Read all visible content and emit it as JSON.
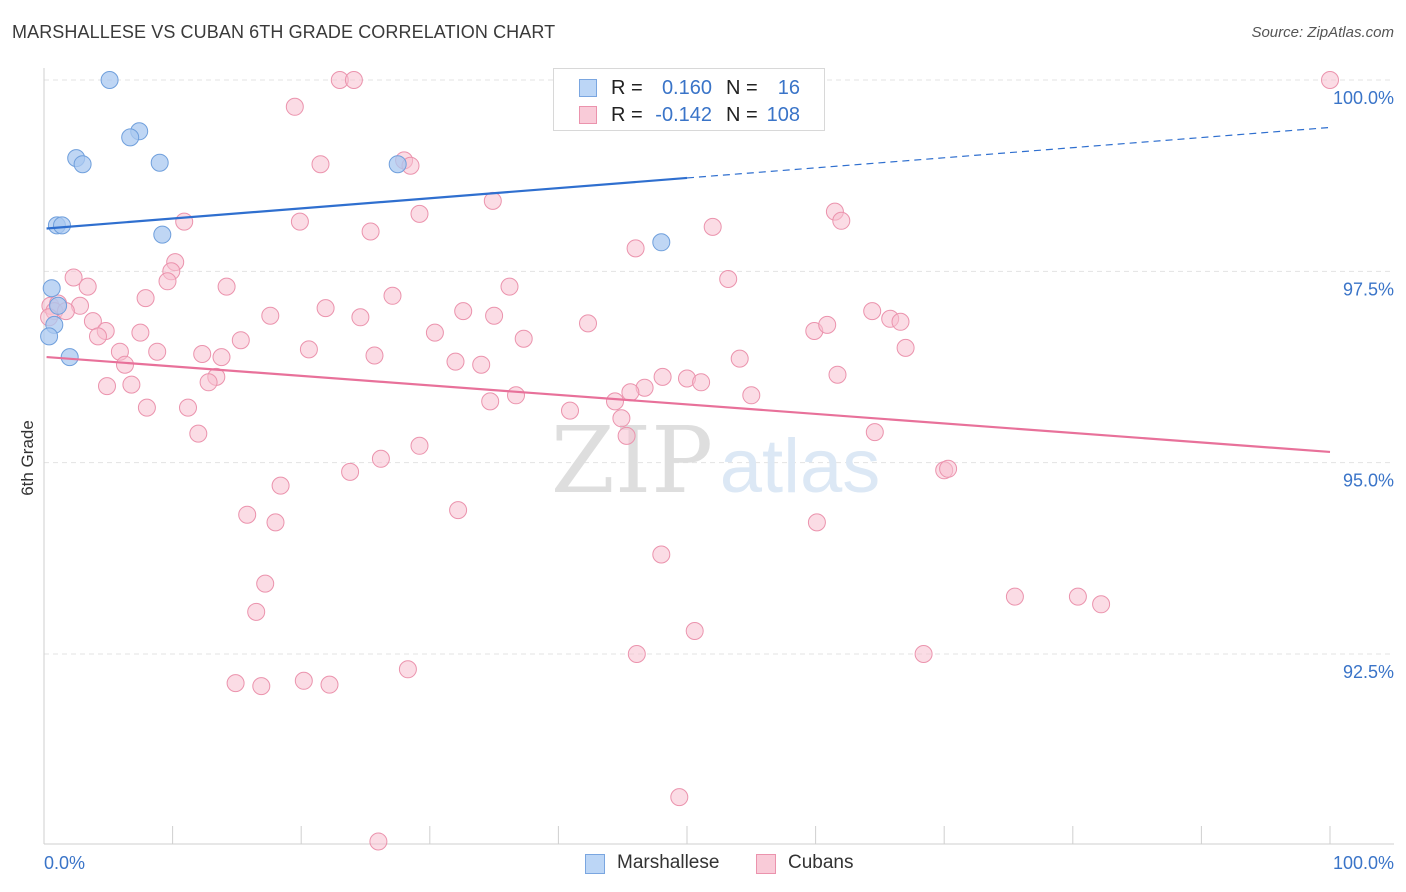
{
  "title": "MARSHALLESE VS CUBAN 6TH GRADE CORRELATION CHART",
  "source": "Source: ZipAtlas.com",
  "watermark": {
    "zip": "ZIP",
    "atlas": "atlas"
  },
  "legend": {
    "rows": [
      {
        "r_label": "R =",
        "r_value": "0.160",
        "n_label": "N =",
        "n_value": "16",
        "color": "#a9c8f0",
        "border": "#7aa6e0"
      },
      {
        "r_label": "R =",
        "r_value": "-0.142",
        "n_label": "N =",
        "n_value": "108",
        "color": "#f7c0d0",
        "border": "#eb93ad"
      }
    ]
  },
  "bottom_legend": [
    {
      "label": "Marshallese",
      "color": "#bcd6f6",
      "border": "#7aa6e0"
    },
    {
      "label": "Cubans",
      "color": "#f9cbd8",
      "border": "#eb93ad"
    }
  ],
  "chart_data": {
    "type": "scatter",
    "title": "MARSHALLESE VS CUBAN 6TH GRADE CORRELATION CHART",
    "xlabel": "",
    "ylabel": "6th Grade",
    "xlim": [
      0,
      100
    ],
    "ylim": [
      89.8,
      100.4
    ],
    "x_tick_labels": {
      "left": "0.0%",
      "right": "100.0%"
    },
    "y_ticks": [
      {
        "value": 100.0,
        "label": "100.0%"
      },
      {
        "value": 97.5,
        "label": "97.5%"
      },
      {
        "value": 95.0,
        "label": "95.0%"
      },
      {
        "value": 92.5,
        "label": "92.5%"
      }
    ],
    "grid": true,
    "series": [
      {
        "name": "Marshallese",
        "color": "#a9c8f0",
        "stroke": "#6f9fdc",
        "line_color": "#2f6fcf",
        "trend": {
          "x_start": 0.2,
          "y_start": 98.06,
          "x_solid_end": 50.0,
          "y_solid_end": 98.72,
          "x_dash_end": 100.0,
          "y_dash_end": 99.38
        },
        "points": [
          {
            "x": 5.1,
            "y": 100.0
          },
          {
            "x": 7.4,
            "y": 99.33
          },
          {
            "x": 6.7,
            "y": 99.25
          },
          {
            "x": 2.5,
            "y": 98.98
          },
          {
            "x": 3.0,
            "y": 98.9
          },
          {
            "x": 9.0,
            "y": 98.92
          },
          {
            "x": 27.5,
            "y": 98.9
          },
          {
            "x": 1.0,
            "y": 98.1
          },
          {
            "x": 1.4,
            "y": 98.1
          },
          {
            "x": 9.2,
            "y": 97.98
          },
          {
            "x": 48.0,
            "y": 97.88
          },
          {
            "x": 0.6,
            "y": 97.28
          },
          {
            "x": 1.1,
            "y": 97.05
          },
          {
            "x": 0.8,
            "y": 96.8
          },
          {
            "x": 0.4,
            "y": 96.65
          },
          {
            "x": 2.0,
            "y": 96.38
          }
        ]
      },
      {
        "name": "Cubans",
        "color": "#f7c0d0",
        "stroke": "#eb93ad",
        "line_color": "#e8719a",
        "trend": {
          "x_start": 0.2,
          "y_start": 96.38,
          "x_end": 100.0,
          "y_end": 95.14
        },
        "points": [
          {
            "x": 23.0,
            "y": 100.0
          },
          {
            "x": 24.1,
            "y": 100.0
          },
          {
            "x": 100.0,
            "y": 100.0
          },
          {
            "x": 19.5,
            "y": 99.65
          },
          {
            "x": 21.5,
            "y": 98.9
          },
          {
            "x": 28.0,
            "y": 98.95
          },
          {
            "x": 28.5,
            "y": 98.88
          },
          {
            "x": 34.9,
            "y": 98.42
          },
          {
            "x": 29.2,
            "y": 98.25
          },
          {
            "x": 10.9,
            "y": 98.15
          },
          {
            "x": 19.9,
            "y": 98.15
          },
          {
            "x": 61.5,
            "y": 98.28
          },
          {
            "x": 62.0,
            "y": 98.16
          },
          {
            "x": 52.0,
            "y": 98.08
          },
          {
            "x": 25.4,
            "y": 98.02
          },
          {
            "x": 46.0,
            "y": 97.8
          },
          {
            "x": 10.2,
            "y": 97.62
          },
          {
            "x": 9.9,
            "y": 97.5
          },
          {
            "x": 2.3,
            "y": 97.42
          },
          {
            "x": 9.6,
            "y": 97.37
          },
          {
            "x": 53.2,
            "y": 97.4
          },
          {
            "x": 3.4,
            "y": 97.3
          },
          {
            "x": 14.2,
            "y": 97.3
          },
          {
            "x": 36.2,
            "y": 97.3
          },
          {
            "x": 27.1,
            "y": 97.18
          },
          {
            "x": 7.9,
            "y": 97.15
          },
          {
            "x": 0.5,
            "y": 97.05
          },
          {
            "x": 1.1,
            "y": 97.08
          },
          {
            "x": 2.8,
            "y": 97.05
          },
          {
            "x": 21.9,
            "y": 97.02
          },
          {
            "x": 0.8,
            "y": 96.98
          },
          {
            "x": 1.7,
            "y": 96.98
          },
          {
            "x": 32.6,
            "y": 96.98
          },
          {
            "x": 17.6,
            "y": 96.92
          },
          {
            "x": 35.0,
            "y": 96.92
          },
          {
            "x": 24.6,
            "y": 96.9
          },
          {
            "x": 65.8,
            "y": 96.88
          },
          {
            "x": 64.4,
            "y": 96.98
          },
          {
            "x": 3.8,
            "y": 96.85
          },
          {
            "x": 42.3,
            "y": 96.82
          },
          {
            "x": 66.6,
            "y": 96.84
          },
          {
            "x": 0.4,
            "y": 96.9
          },
          {
            "x": 4.8,
            "y": 96.72
          },
          {
            "x": 7.5,
            "y": 96.7
          },
          {
            "x": 30.4,
            "y": 96.7
          },
          {
            "x": 59.9,
            "y": 96.72
          },
          {
            "x": 60.9,
            "y": 96.8
          },
          {
            "x": 4.2,
            "y": 96.65
          },
          {
            "x": 15.3,
            "y": 96.6
          },
          {
            "x": 37.3,
            "y": 96.62
          },
          {
            "x": 20.6,
            "y": 96.48
          },
          {
            "x": 5.9,
            "y": 96.45
          },
          {
            "x": 8.8,
            "y": 96.45
          },
          {
            "x": 12.3,
            "y": 96.42
          },
          {
            "x": 25.7,
            "y": 96.4
          },
          {
            "x": 13.8,
            "y": 96.38
          },
          {
            "x": 32.0,
            "y": 96.32
          },
          {
            "x": 34.0,
            "y": 96.28
          },
          {
            "x": 54.1,
            "y": 96.36
          },
          {
            "x": 67.0,
            "y": 96.5
          },
          {
            "x": 6.3,
            "y": 96.28
          },
          {
            "x": 13.4,
            "y": 96.12
          },
          {
            "x": 12.8,
            "y": 96.05
          },
          {
            "x": 48.1,
            "y": 96.12
          },
          {
            "x": 50.0,
            "y": 96.1
          },
          {
            "x": 61.7,
            "y": 96.15
          },
          {
            "x": 4.9,
            "y": 96.0
          },
          {
            "x": 6.8,
            "y": 96.02
          },
          {
            "x": 51.1,
            "y": 96.05
          },
          {
            "x": 46.7,
            "y": 95.98
          },
          {
            "x": 45.6,
            "y": 95.92
          },
          {
            "x": 55.0,
            "y": 95.88
          },
          {
            "x": 36.7,
            "y": 95.88
          },
          {
            "x": 34.7,
            "y": 95.8
          },
          {
            "x": 44.4,
            "y": 95.8
          },
          {
            "x": 8.0,
            "y": 95.72
          },
          {
            "x": 11.2,
            "y": 95.72
          },
          {
            "x": 40.9,
            "y": 95.68
          },
          {
            "x": 44.9,
            "y": 95.58
          },
          {
            "x": 12.0,
            "y": 95.38
          },
          {
            "x": 45.3,
            "y": 95.35
          },
          {
            "x": 64.6,
            "y": 95.4
          },
          {
            "x": 29.2,
            "y": 95.22
          },
          {
            "x": 26.2,
            "y": 95.05
          },
          {
            "x": 23.8,
            "y": 94.88
          },
          {
            "x": 70.0,
            "y": 94.9
          },
          {
            "x": 70.3,
            "y": 94.92
          },
          {
            "x": 18.4,
            "y": 94.7
          },
          {
            "x": 15.8,
            "y": 94.32
          },
          {
            "x": 32.2,
            "y": 94.38
          },
          {
            "x": 18.0,
            "y": 94.22
          },
          {
            "x": 60.1,
            "y": 94.22
          },
          {
            "x": 48.0,
            "y": 93.8
          },
          {
            "x": 17.2,
            "y": 93.42
          },
          {
            "x": 75.5,
            "y": 93.25
          },
          {
            "x": 80.4,
            "y": 93.25
          },
          {
            "x": 82.2,
            "y": 93.15
          },
          {
            "x": 16.5,
            "y": 93.05
          },
          {
            "x": 50.6,
            "y": 92.8
          },
          {
            "x": 46.1,
            "y": 92.5
          },
          {
            "x": 68.4,
            "y": 92.5
          },
          {
            "x": 28.3,
            "y": 92.3
          },
          {
            "x": 14.9,
            "y": 92.12
          },
          {
            "x": 20.2,
            "y": 92.15
          },
          {
            "x": 16.9,
            "y": 92.08
          },
          {
            "x": 22.2,
            "y": 92.1
          },
          {
            "x": 49.4,
            "y": 90.63
          },
          {
            "x": 26.0,
            "y": 90.05
          }
        ]
      }
    ]
  }
}
